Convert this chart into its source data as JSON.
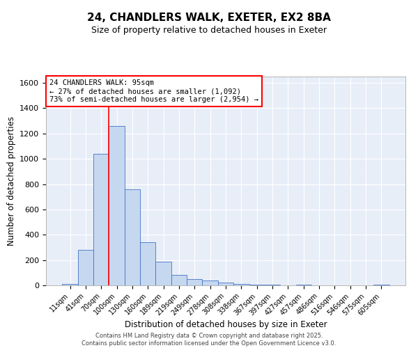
{
  "title_line1": "24, CHANDLERS WALK, EXETER, EX2 8BA",
  "title_line2": "Size of property relative to detached houses in Exeter",
  "xlabel": "Distribution of detached houses by size in Exeter",
  "ylabel": "Number of detached properties",
  "categories": [
    "11sqm",
    "41sqm",
    "70sqm",
    "100sqm",
    "130sqm",
    "160sqm",
    "189sqm",
    "219sqm",
    "249sqm",
    "278sqm",
    "308sqm",
    "338sqm",
    "367sqm",
    "397sqm",
    "427sqm",
    "457sqm",
    "486sqm",
    "516sqm",
    "546sqm",
    "575sqm",
    "605sqm"
  ],
  "values": [
    10,
    280,
    1040,
    1260,
    760,
    340,
    185,
    80,
    47,
    37,
    22,
    13,
    8,
    5,
    0,
    5,
    0,
    0,
    0,
    0,
    5
  ],
  "bar_color": "#c5d8f0",
  "bar_edge_color": "#4472c4",
  "vline_color": "red",
  "vline_index": 2.5,
  "annotation_text": "24 CHANDLERS WALK: 95sqm\n← 27% of detached houses are smaller (1,092)\n73% of semi-detached houses are larger (2,954) →",
  "annotation_box_color": "white",
  "annotation_box_edge": "red",
  "ylim": [
    0,
    1650
  ],
  "yticks": [
    0,
    200,
    400,
    600,
    800,
    1000,
    1200,
    1400,
    1600
  ],
  "footer_line1": "Contains HM Land Registry data © Crown copyright and database right 2025.",
  "footer_line2": "Contains public sector information licensed under the Open Government Licence v3.0.",
  "bg_color": "#e8eef8",
  "fig_bg_color": "#ffffff"
}
